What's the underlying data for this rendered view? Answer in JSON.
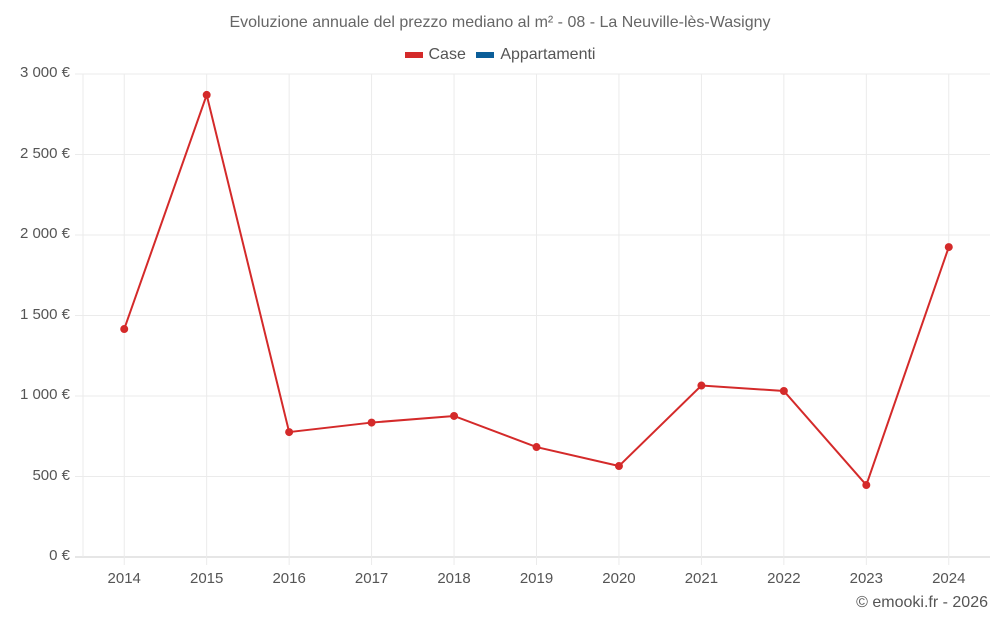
{
  "chart_data": {
    "type": "line",
    "title": "Evoluzione annuale del prezzo mediano al m² - 08 - La Neuville-lès-Wasigny",
    "xlabel": "",
    "ylabel": "",
    "categories": [
      "2014",
      "2015",
      "2016",
      "2017",
      "2018",
      "2019",
      "2020",
      "2021",
      "2022",
      "2023",
      "2024"
    ],
    "series": [
      {
        "name": "Case",
        "color": "#d42a2a",
        "values": [
          1416,
          2870,
          776,
          835,
          876,
          683,
          565,
          1065,
          1031,
          447,
          1925
        ]
      },
      {
        "name": "Appartamenti",
        "color": "#0b5e99",
        "values": []
      }
    ],
    "ylim": [
      0,
      3000
    ],
    "yticks": [
      0,
      500,
      1000,
      1500,
      2000,
      2500,
      3000
    ],
    "ytick_labels": [
      "0 €",
      "500 €",
      "1 000 €",
      "1 500 €",
      "2 000 €",
      "2 500 €",
      "3 000 €"
    ],
    "grid": true,
    "legend_position": "top"
  },
  "legend": [
    {
      "label": "Case",
      "color": "#d42a2a"
    },
    {
      "label": "Appartamenti",
      "color": "#0b5e99"
    }
  ],
  "credit": "© emooki.fr - 2026"
}
